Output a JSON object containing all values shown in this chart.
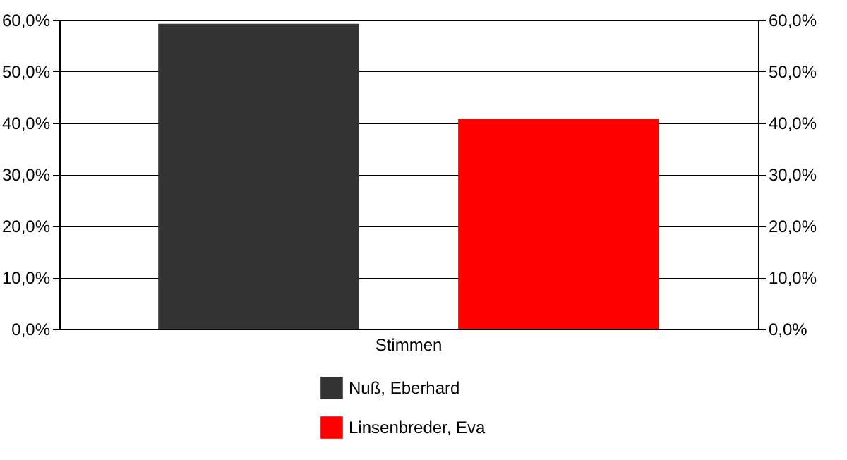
{
  "chart_data": {
    "type": "bar",
    "categories": [
      "Stimmen"
    ],
    "series": [
      {
        "name": "Nuß, Eberhard",
        "color": "#333333",
        "values": [
          59.2
        ]
      },
      {
        "name": "Linsenbreder, Eva",
        "color": "#ff0000",
        "values": [
          40.8
        ]
      }
    ],
    "ylim": [
      0,
      60
    ],
    "yticks": [
      {
        "value": 0,
        "label": "0,0%"
      },
      {
        "value": 10,
        "label": "10,0%"
      },
      {
        "value": 20,
        "label": "20,0%"
      },
      {
        "value": 30,
        "label": "30,0%"
      },
      {
        "value": 40,
        "label": "40,0%"
      },
      {
        "value": 50,
        "label": "50,0%"
      },
      {
        "value": 60,
        "label": "60,0%"
      }
    ],
    "grid": "y",
    "legend": "bottom"
  }
}
